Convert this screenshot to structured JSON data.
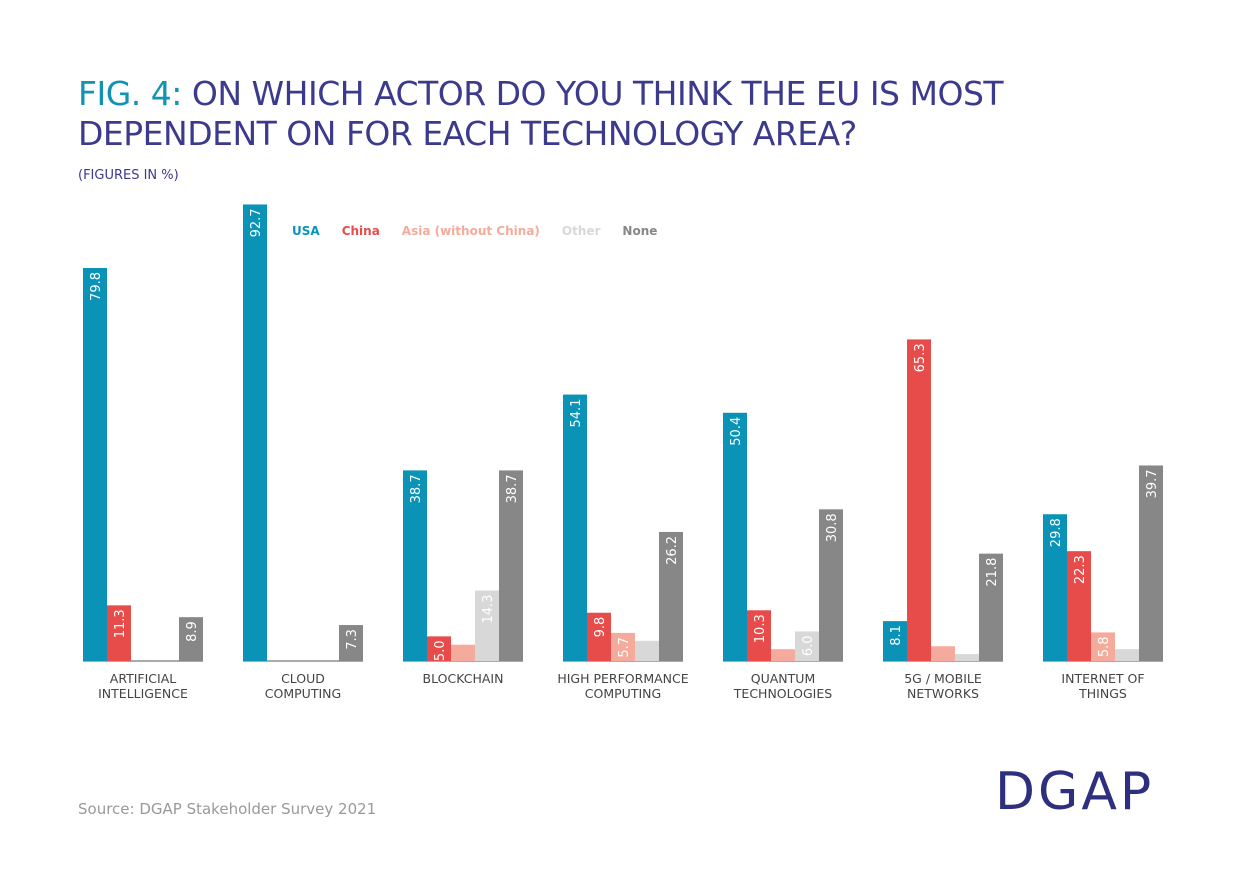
{
  "chart_data": {
    "type": "bar",
    "figure_label": "FIG. 4:",
    "title": "ON WHICH ACTOR DO YOU THINK THE EU IS MOST\nDEPENDENT ON FOR EACH TECHNOLOGY AREA?",
    "subtitle": "(FIGURES IN %)",
    "categories": [
      "ARTIFICIAL\nINTELLIGENCE",
      "CLOUD\nCOMPUTING",
      "BLOCKCHAIN",
      "HIGH PERFORMANCE\nCOMPUTING",
      "QUANTUM\nTECHNOLOGIES",
      "5G / MOBILE\nNETWORKS",
      "INTERNET OF\nTHINGS"
    ],
    "series": [
      {
        "name": "USA",
        "color": "#0b93b7",
        "values": [
          79.8,
          92.7,
          38.7,
          54.1,
          50.4,
          8.1,
          29.8
        ],
        "value_labels": [
          "79.8",
          "92.7",
          "38.7",
          "54.1",
          "50.4",
          "8.1",
          "29.8"
        ]
      },
      {
        "name": "China",
        "color": "#e84c4a",
        "values": [
          11.3,
          null,
          5.0,
          9.8,
          10.3,
          65.3,
          22.3
        ],
        "value_labels": [
          "11.3",
          null,
          "5.0",
          "9.8",
          "10.3",
          "65.3",
          "22.3"
        ]
      },
      {
        "name": "Asia (without China)",
        "color": "#f5ab9b",
        "values": [
          null,
          null,
          3.3,
          5.7,
          2.4,
          3.0,
          5.8
        ],
        "value_labels": [
          null,
          null,
          null,
          "5.7",
          null,
          null,
          "5.8"
        ]
      },
      {
        "name": "Other",
        "color": "#d8d8d8",
        "values": [
          null,
          null,
          14.3,
          4.1,
          6.0,
          1.4,
          2.4
        ],
        "value_labels": [
          null,
          null,
          "14.3",
          null,
          "6.0",
          null,
          null
        ]
      },
      {
        "name": "None",
        "color": "#878787",
        "values": [
          8.9,
          7.3,
          38.7,
          26.2,
          30.8,
          21.8,
          39.7
        ],
        "value_labels": [
          "8.9",
          "7.3",
          "38.7",
          "26.2",
          "30.8",
          "21.8",
          "39.7"
        ]
      }
    ],
    "ylim": [
      0,
      100
    ],
    "source": "Source: DGAP Stakeholder Survey 2021",
    "logo": "DGAP"
  }
}
